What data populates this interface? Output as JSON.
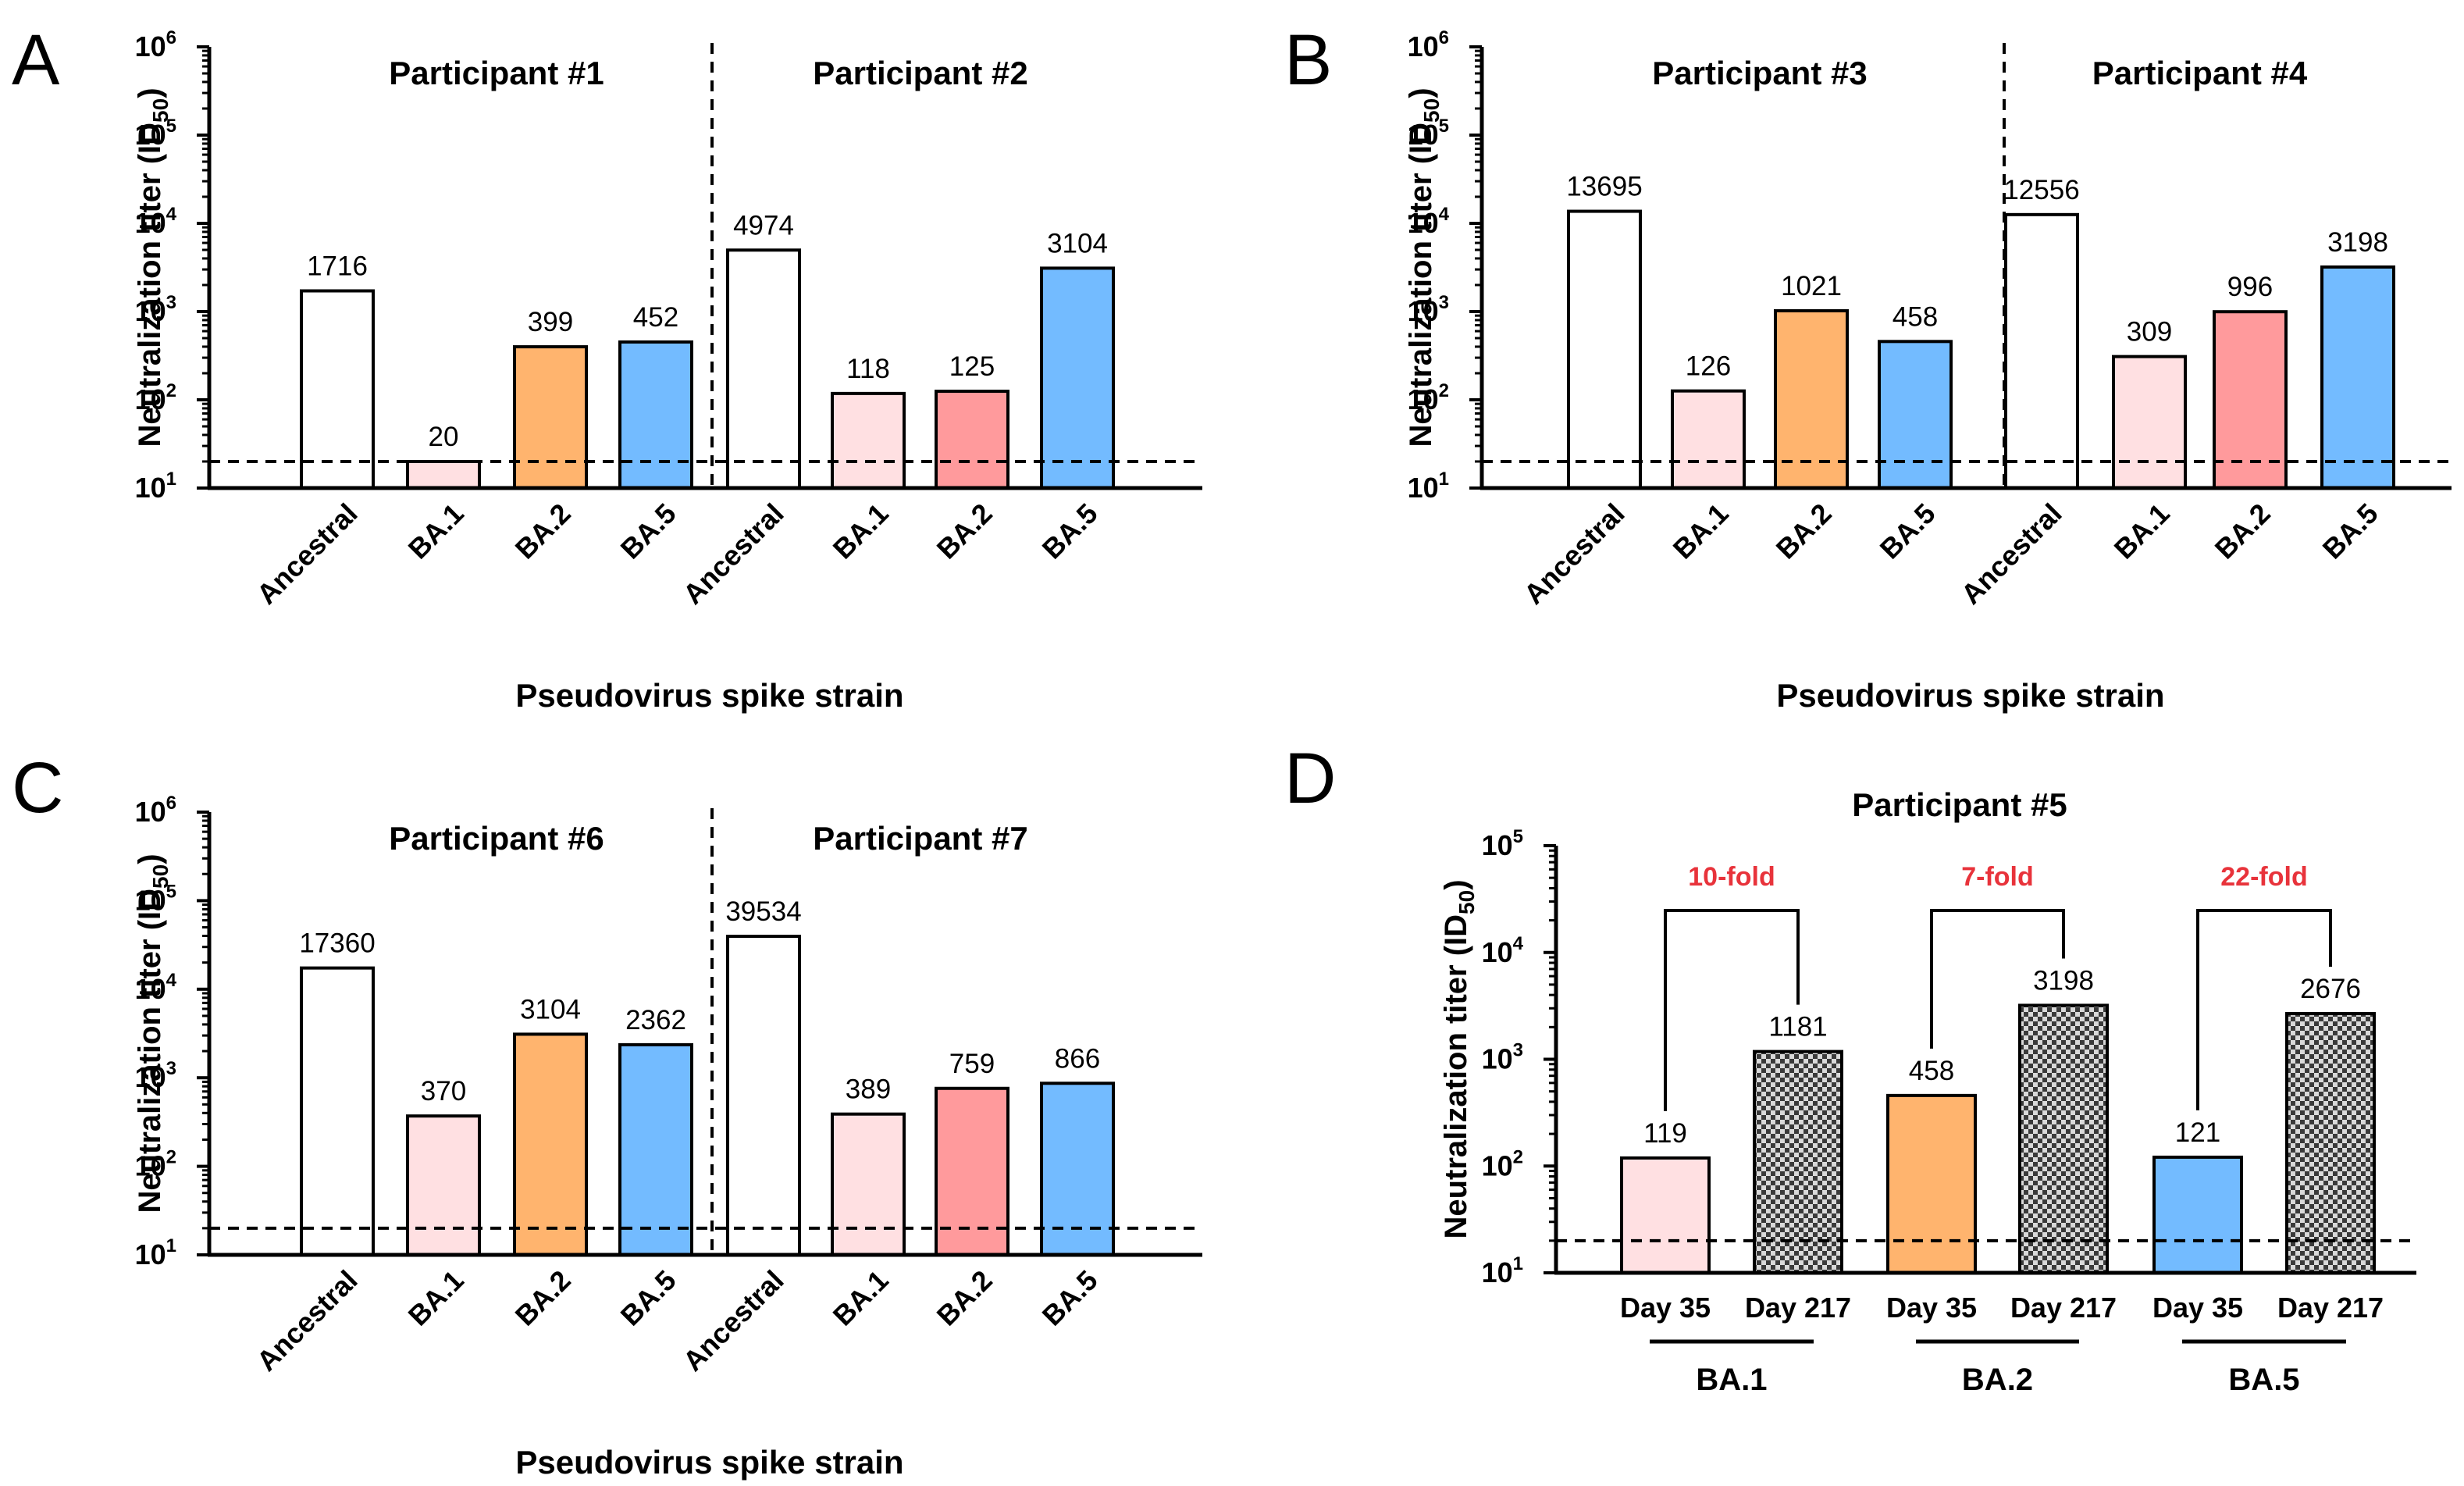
{
  "chart_data": [
    {
      "panel": "A",
      "type": "bar",
      "scale": "log",
      "ylim": [
        10,
        1000000
      ],
      "ylabel": "Neutralization titer (ID50)",
      "xlabel": "Pseudovirus spike strain",
      "detection_limit": 20,
      "groups": [
        {
          "title": "Participant #1",
          "categories": [
            "Ancestral",
            "BA.1",
            "BA.2",
            "BA.5"
          ],
          "values": [
            1716,
            20,
            399,
            452
          ],
          "labels": [
            "1716",
            "20",
            "399",
            "452"
          ]
        },
        {
          "title": "Participant #2",
          "categories": [
            "Ancestral",
            "BA.1",
            "BA.2",
            "BA.5"
          ],
          "values": [
            4974,
            118,
            125,
            3104
          ],
          "labels": [
            "4974",
            "118",
            "125",
            "3104"
          ]
        }
      ]
    },
    {
      "panel": "B",
      "type": "bar",
      "scale": "log",
      "ylim": [
        10,
        1000000
      ],
      "ylabel": "Neutralization titer (ID50)",
      "xlabel": "Pseudovirus spike strain",
      "detection_limit": 20,
      "groups": [
        {
          "title": "Participant #3",
          "categories": [
            "Ancestral",
            "BA.1",
            "BA.2",
            "BA.5"
          ],
          "values": [
            13695,
            126,
            1021,
            458
          ],
          "labels": [
            "13695",
            "126",
            "1021",
            "458"
          ]
        },
        {
          "title": "Participant #4",
          "categories": [
            "Ancestral",
            "BA.1",
            "BA.2",
            "BA.5"
          ],
          "values": [
            12556,
            309,
            996,
            3198
          ],
          "labels": [
            "12556",
            "309",
            "996",
            "3198"
          ]
        }
      ]
    },
    {
      "panel": "C",
      "type": "bar",
      "scale": "log",
      "ylim": [
        10,
        1000000
      ],
      "ylabel": "Neutralization titer (ID50)",
      "xlabel": "Pseudovirus spike strain",
      "detection_limit": 20,
      "groups": [
        {
          "title": "Participant #6",
          "categories": [
            "Ancestral",
            "BA.1",
            "BA.2",
            "BA.5"
          ],
          "values": [
            17360,
            370,
            3104,
            2362
          ],
          "labels": [
            "17360",
            "370",
            "3104",
            "2362"
          ]
        },
        {
          "title": "Participant #7",
          "categories": [
            "Ancestral",
            "BA.1",
            "BA.2",
            "BA.5"
          ],
          "values": [
            39534,
            389,
            759,
            866
          ],
          "labels": [
            "39534",
            "389",
            "759",
            "866"
          ]
        }
      ]
    },
    {
      "panel": "D",
      "type": "bar",
      "scale": "log",
      "ylim": [
        10,
        100000
      ],
      "title": "Participant #5",
      "ylabel": "Neutralization titer (ID50)",
      "detection_limit": 20,
      "groups": [
        {
          "title": "BA.1",
          "categories": [
            "Day 35",
            "Day 217"
          ],
          "values": [
            119,
            1181
          ],
          "labels": [
            "119",
            "1181"
          ],
          "fold": "10-fold"
        },
        {
          "title": "BA.2",
          "categories": [
            "Day 35",
            "Day 217"
          ],
          "values": [
            458,
            3198
          ],
          "labels": [
            "458",
            "3198"
          ],
          "fold": "7-fold"
        },
        {
          "title": "BA.5",
          "categories": [
            "Day 35",
            "Day 217"
          ],
          "values": [
            121,
            2676
          ],
          "labels": [
            "121",
            "2676"
          ],
          "fold": "22-fold"
        }
      ]
    }
  ],
  "colors": {
    "Ancestral": "#ffffff",
    "BA.1": "#ffe0e2",
    "BA.2_orange": "#ffb46e",
    "BA.2_red": "#ff9a9c",
    "BA.5": "#73bbff",
    "Day 217": "checkered-gray",
    "fold_text": "#e8333b"
  }
}
